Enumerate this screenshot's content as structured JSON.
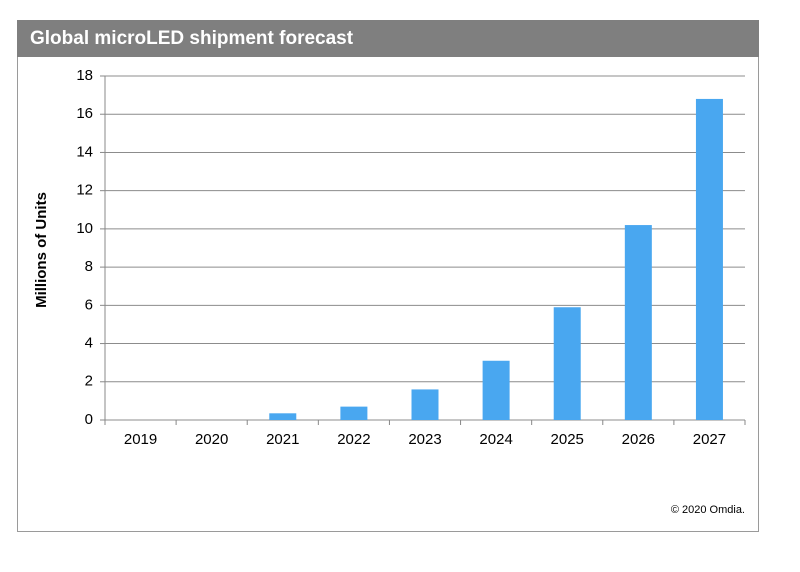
{
  "chart_data": {
    "type": "bar",
    "title": "Global microLED shipment forecast",
    "y_label": "Millions of Units",
    "categories": [
      "2019",
      "2020",
      "2021",
      "2022",
      "2023",
      "2024",
      "2025",
      "2026",
      "2027"
    ],
    "values": [
      0,
      0,
      0.35,
      0.7,
      1.6,
      3.1,
      5.9,
      10.2,
      16.8
    ],
    "color": "#49a7f0",
    "ylim": [
      0,
      18
    ],
    "yticks": [
      0,
      2,
      4,
      6,
      8,
      10,
      12,
      14,
      16,
      18
    ],
    "grid": true,
    "source": "© 2020 Omdia."
  }
}
